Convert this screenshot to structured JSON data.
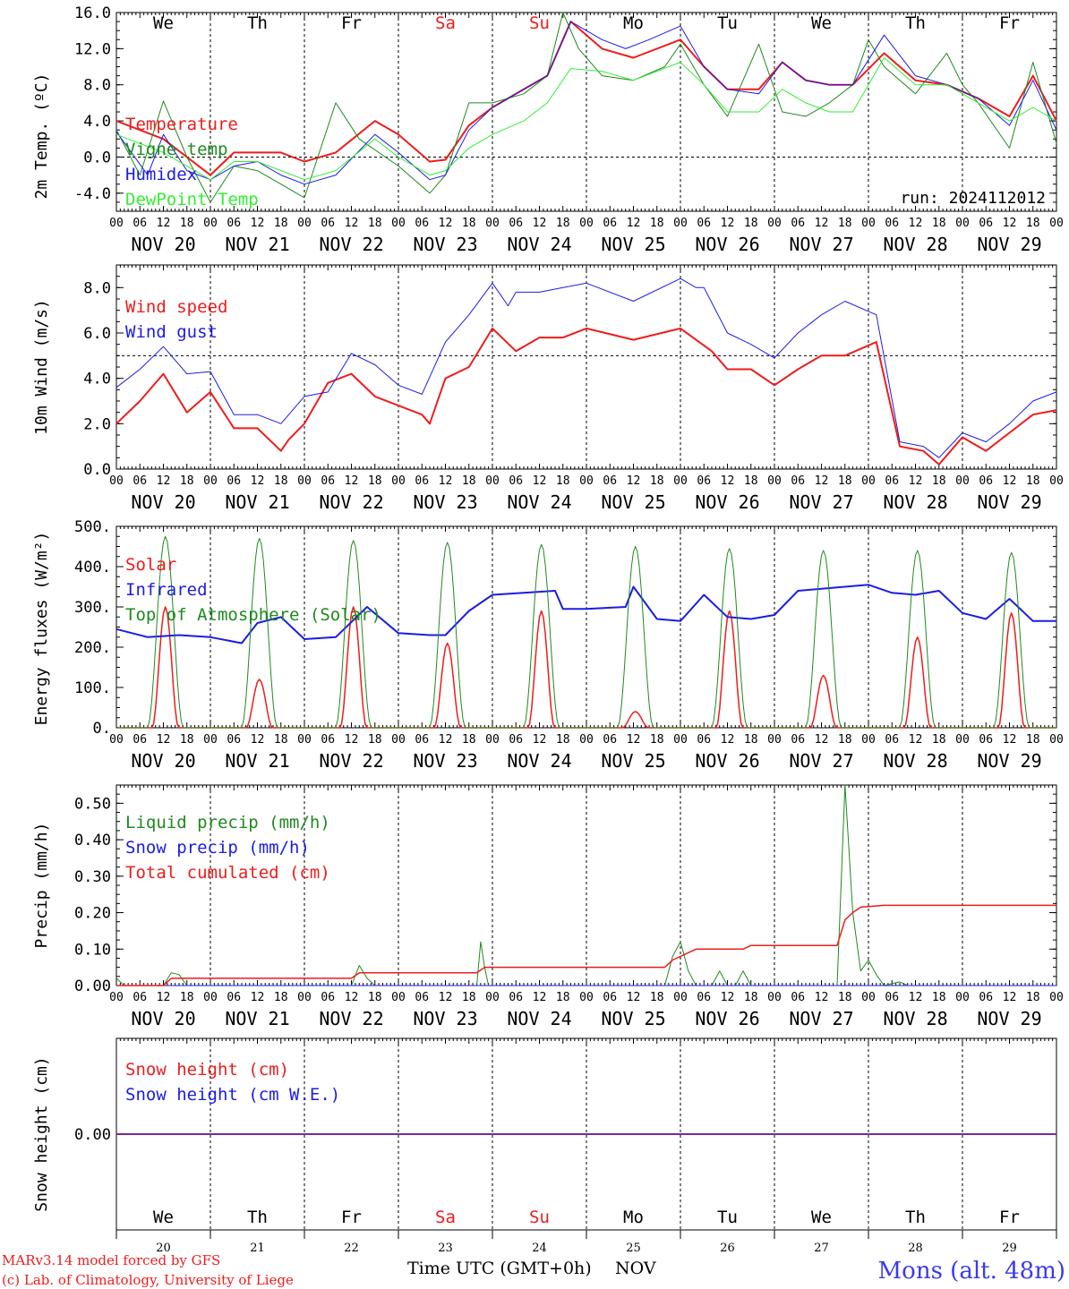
{
  "chart_data": {
    "type": "line",
    "days": [
      "NOV 20",
      "NOV 21",
      "NOV 22",
      "NOV 23",
      "NOV 24",
      "NOV 25",
      "NOV 26",
      "NOV 27",
      "NOV 28",
      "NOV 29"
    ],
    "hour_ticks": [
      "00",
      "06",
      "12",
      "18"
    ],
    "hour_ticks_end": "00",
    "weekdays": [
      {
        "label": "We",
        "color": "#000000"
      },
      {
        "label": "Th",
        "color": "#000000"
      },
      {
        "label": "Fr",
        "color": "#000000"
      },
      {
        "label": "Sa",
        "color": "#ee1c1c"
      },
      {
        "label": "Su",
        "color": "#ee1c1c"
      },
      {
        "label": "Mo",
        "color": "#000000"
      },
      {
        "label": "Tu",
        "color": "#000000"
      },
      {
        "label": "We",
        "color": "#000000"
      },
      {
        "label": "Th",
        "color": "#000000"
      },
      {
        "label": "Fr",
        "color": "#000000"
      }
    ],
    "day_numbers": [
      "20",
      "21",
      "22",
      "23",
      "24",
      "25",
      "26",
      "27",
      "28",
      "29"
    ],
    "run_label": "run: 2024112012",
    "x_title": "Time UTC (GMT+0h)",
    "x_month": "NOV",
    "credits": [
      "MARv3.14 model forced by GFS",
      "(c) Lab. of Climatology, University of Liege"
    ],
    "station": "Mons (alt. 48m)",
    "panels": [
      {
        "id": "temperature",
        "ylabel": "2m Temp. (ºC)",
        "ylim": [
          -6,
          16
        ],
        "yticks": [
          "16.0",
          "12.0",
          "8.0",
          "4.0",
          "0.0",
          "-4.0"
        ],
        "ytick_values": [
          16,
          12,
          8,
          4,
          0,
          -4
        ],
        "ref_line": 0,
        "series": [
          {
            "name": "Temperature",
            "color": "#ee1c1c",
            "width": 2,
            "t": [
              0,
              12,
              24,
              30,
              36,
              42,
              48,
              56,
              66,
              72,
              80,
              84,
              90,
              96,
              104,
              110,
              116,
              124,
              132,
              144,
              150,
              156,
              164,
              170,
              176,
              182,
              188,
              196,
              204,
              212,
              220,
              228,
              234,
              240
            ],
            "values": [
              4.0,
              2.0,
              -2.0,
              0.5,
              0.5,
              0.5,
              -0.5,
              0.5,
              4.0,
              2.5,
              -0.5,
              -0.3,
              3.5,
              5.5,
              7.5,
              9.0,
              15.0,
              12.0,
              11.0,
              13.0,
              10.0,
              7.5,
              7.5,
              10.5,
              8.5,
              8.0,
              8.0,
              11.5,
              8.5,
              8.0,
              6.5,
              4.5,
              9.0,
              4.0
            ]
          },
          {
            "name": "Vigne temp",
            "color": "#1e8a1e",
            "width": 1,
            "t": [
              0,
              6,
              12,
              18,
              24,
              30,
              36,
              42,
              48,
              56,
              62,
              72,
              80,
              84,
              90,
              96,
              104,
              110,
              114,
              118,
              124,
              132,
              140,
              144,
              150,
              156,
              164,
              170,
              176,
              182,
              188,
              192,
              196,
              204,
              212,
              216,
              220,
              228,
              234,
              240
            ],
            "values": [
              3.0,
              -2.0,
              6.2,
              0.0,
              -5.0,
              -1.0,
              -1.5,
              -3.0,
              -4.5,
              6.0,
              2.0,
              -1.0,
              -4.0,
              -2.0,
              6.0,
              6.0,
              7.0,
              9.0,
              16.0,
              12.0,
              9.0,
              8.5,
              10.0,
              12.5,
              8.0,
              4.5,
              12.5,
              5.0,
              4.5,
              6.0,
              8.0,
              13.0,
              10.0,
              7.0,
              11.5,
              8.0,
              6.0,
              1.0,
              10.5,
              1.5
            ]
          },
          {
            "name": "Humidex",
            "color": "#1c1ce6",
            "width": 1,
            "t": [
              0,
              8,
              12,
              18,
              24,
              30,
              36,
              42,
              48,
              56,
              66,
              72,
              80,
              84,
              90,
              96,
              104,
              110,
              116,
              124,
              130,
              136,
              144,
              150,
              156,
              164,
              170,
              176,
              182,
              188,
              196,
              204,
              212,
              220,
              228,
              234,
              240
            ],
            "values": [
              2.8,
              -2.0,
              2.5,
              -1.5,
              -2.5,
              -1.0,
              -0.5,
              -2.0,
              -3.0,
              -2.0,
              2.5,
              0.5,
              -2.5,
              -2.0,
              3.0,
              5.5,
              7.5,
              9.0,
              15.0,
              13.0,
              12.0,
              13.0,
              14.5,
              10.0,
              7.5,
              7.0,
              10.5,
              8.5,
              8.0,
              8.0,
              13.5,
              9.0,
              8.0,
              6.5,
              3.5,
              8.5,
              3.0
            ]
          },
          {
            "name": "DewPoint Temp",
            "color": "#33ee33",
            "width": 1,
            "t": [
              0,
              12,
              24,
              30,
              36,
              42,
              48,
              56,
              66,
              72,
              80,
              84,
              90,
              96,
              104,
              110,
              116,
              124,
              132,
              144,
              150,
              156,
              164,
              170,
              176,
              182,
              188,
              196,
              204,
              212,
              220,
              228,
              234,
              240
            ],
            "values": [
              2.5,
              0.5,
              -2.5,
              -0.5,
              -0.5,
              -1.5,
              -2.5,
              -1.5,
              2.0,
              0.0,
              -2.0,
              -1.5,
              1.0,
              2.5,
              4.0,
              6.0,
              9.8,
              9.5,
              8.5,
              10.5,
              8.0,
              5.0,
              5.0,
              7.5,
              6.0,
              5.0,
              5.0,
              11.0,
              8.0,
              8.0,
              6.0,
              4.0,
              5.5,
              4.0
            ]
          }
        ]
      },
      {
        "id": "wind",
        "ylabel": "10m Wind (m/s)",
        "ylim": [
          0,
          9
        ],
        "yticks": [
          "8.0",
          "6.0",
          "4.0",
          "2.0",
          "0.0"
        ],
        "ytick_values": [
          8,
          6,
          4,
          2,
          0
        ],
        "ref_line": 5,
        "series": [
          {
            "name": "Wind speed",
            "color": "#ee1c1c",
            "width": 2,
            "t": [
              0,
              6,
              12,
              18,
              24,
              30,
              36,
              42,
              44,
              48,
              54,
              60,
              66,
              72,
              78,
              80,
              84,
              90,
              96,
              102,
              108,
              114,
              120,
              132,
              144,
              152,
              156,
              162,
              168,
              174,
              180,
              186,
              194,
              200,
              206,
              210,
              216,
              222,
              228,
              234,
              240
            ],
            "values": [
              2.0,
              3.0,
              4.2,
              2.5,
              3.4,
              1.8,
              1.8,
              0.8,
              1.3,
              2.0,
              3.8,
              4.2,
              3.2,
              2.8,
              2.4,
              2.0,
              4.0,
              4.5,
              6.2,
              5.2,
              5.8,
              5.8,
              6.2,
              5.7,
              6.2,
              5.2,
              4.4,
              4.4,
              3.7,
              4.4,
              5.0,
              5.0,
              5.6,
              1.0,
              0.8,
              0.2,
              1.4,
              0.8,
              1.6,
              2.4,
              2.6
            ]
          },
          {
            "name": "Wind gust",
            "color": "#1c1ce6",
            "width": 1,
            "t": [
              0,
              6,
              12,
              18,
              24,
              30,
              36,
              42,
              48,
              54,
              60,
              66,
              72,
              78,
              84,
              90,
              96,
              100,
              102,
              108,
              114,
              120,
              132,
              144,
              148,
              150,
              156,
              162,
              168,
              174,
              180,
              186,
              194,
              200,
              206,
              210,
              216,
              222,
              228,
              234,
              240
            ],
            "values": [
              3.6,
              4.4,
              5.4,
              4.2,
              4.3,
              2.4,
              2.4,
              2.0,
              3.2,
              3.4,
              5.1,
              4.6,
              3.7,
              3.3,
              5.6,
              6.8,
              8.2,
              7.2,
              7.8,
              7.8,
              8.0,
              8.2,
              7.4,
              8.4,
              8.0,
              8.0,
              6.0,
              5.5,
              4.9,
              6.0,
              6.8,
              7.4,
              6.8,
              1.2,
              1.0,
              0.5,
              1.6,
              1.2,
              2.0,
              3.0,
              3.4
            ]
          }
        ]
      },
      {
        "id": "energy",
        "ylabel": "Energy fluxes (W/m²)",
        "ylim": [
          0,
          500
        ],
        "yticks": [
          "500.",
          "400.",
          "300.",
          "200.",
          "100.",
          "0."
        ],
        "ytick_values": [
          500,
          400,
          300,
          200,
          100,
          0
        ],
        "ref_line": null,
        "solar_peaks": [
          300,
          120,
          300,
          210,
          290,
          40,
          290,
          130,
          225,
          285
        ],
        "toa_peaks": [
          475,
          470,
          465,
          460,
          455,
          450,
          445,
          440,
          440,
          435
        ],
        "series": [
          {
            "name": "Solar",
            "color": "#ee1c1c",
            "width": 1.5,
            "values": []
          },
          {
            "name": "Infrared",
            "color": "#1c1ce6",
            "width": 2,
            "t": [
              0,
              8,
              16,
              24,
              32,
              36,
              42,
              48,
              56,
              64,
              72,
              80,
              84,
              90,
              96,
              104,
              112,
              114,
              120,
              130,
              132,
              138,
              144,
              150,
              156,
              162,
              168,
              174,
              180,
              192,
              198,
              204,
              210,
              216,
              222,
              228,
              234,
              240
            ],
            "values": [
              245,
              225,
              230,
              225,
              210,
              260,
              275,
              220,
              225,
              300,
              235,
              230,
              230,
              290,
              330,
              335,
              340,
              295,
              295,
              300,
              350,
              270,
              265,
              330,
              275,
              270,
              280,
              340,
              345,
              355,
              335,
              330,
              340,
              285,
              270,
              320,
              265,
              265
            ]
          },
          {
            "name": "Top of Atmosphere (Solar)",
            "color": "#1e8a1e",
            "width": 1,
            "values": []
          }
        ]
      },
      {
        "id": "precip",
        "ylabel": "Precip (mm/h)",
        "ylim": [
          0,
          0.55
        ],
        "yticks": [
          "0.50",
          "0.40",
          "0.30",
          "0.20",
          "0.10",
          "0.00"
        ],
        "ytick_values": [
          0.5,
          0.4,
          0.3,
          0.2,
          0.1,
          0
        ],
        "ref_line": null,
        "series": [
          {
            "name": "Liquid precip (mm/h)",
            "color": "#1e8a1e",
            "width": 1,
            "t": [
              0,
              2,
              12,
              14,
              16,
              18,
              60,
              62,
              64,
              66,
              68,
              92,
              93,
              94,
              95,
              96,
              140,
              142,
              144,
              146,
              148,
              152,
              154,
              156,
              158,
              160,
              162,
              184,
              186,
              188,
              190,
              192,
              194,
              196,
              200,
              202,
              204,
              234,
              240
            ],
            "values": [
              0.02,
              0.0,
              0.0,
              0.035,
              0.03,
              0.0,
              0.0,
              0.055,
              0.02,
              0.0,
              0.0,
              0.0,
              0.12,
              0.05,
              0.0,
              0.0,
              0.0,
              0.08,
              0.12,
              0.04,
              0.0,
              0.0,
              0.04,
              0.0,
              0.0,
              0.04,
              0.0,
              0.0,
              0.55,
              0.2,
              0.04,
              0.07,
              0.03,
              0.0,
              0.01,
              0.0,
              0.0,
              0.0,
              0.0
            ]
          },
          {
            "name": "Snow precip (mm/h)",
            "color": "#1c1ce6",
            "width": 1,
            "t": [
              0,
              240
            ],
            "values": [
              0,
              0
            ]
          },
          {
            "name": "Total cumulated (cm)",
            "color": "#ee1c1c",
            "width": 1.5,
            "t": [
              0,
              12,
              14,
              60,
              62,
              92,
              94,
              140,
              142,
              146,
              148,
              160,
              162,
              184,
              186,
              188,
              190,
              196,
              240
            ],
            "values": [
              0.0,
              0.0,
              0.02,
              0.02,
              0.035,
              0.035,
              0.05,
              0.05,
              0.07,
              0.09,
              0.1,
              0.1,
              0.11,
              0.11,
              0.18,
              0.2,
              0.215,
              0.22,
              0.22
            ]
          }
        ]
      },
      {
        "id": "snow",
        "ylabel": "Snow height (cm)",
        "ylim": [
          -1,
          1
        ],
        "yticks": [
          "0.00"
        ],
        "ytick_values": [
          0
        ],
        "ref_line": null,
        "series": [
          {
            "name": "Snow height (cm)",
            "color": "#ee1c1c",
            "width": 1.5,
            "t": [
              0,
              240
            ],
            "values": [
              0,
              0
            ]
          },
          {
            "name": "Snow height (cm W.E.)",
            "color": "#1c1ce6",
            "width": 1.5,
            "t": [
              0,
              240
            ],
            "values": [
              0,
              0
            ]
          }
        ]
      }
    ]
  }
}
